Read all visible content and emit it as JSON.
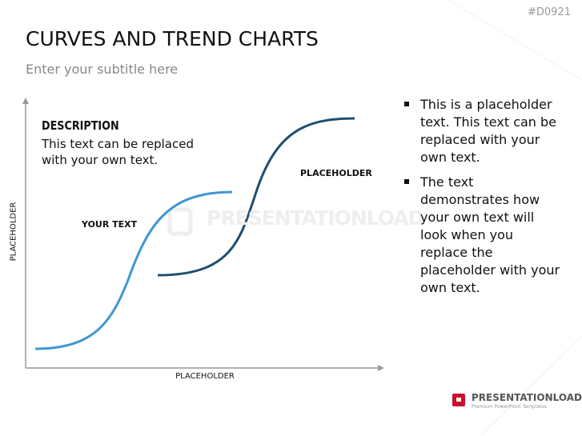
{
  "header": {
    "code": "#D0921",
    "title": "CURVES AND TREND CHARTS",
    "subtitle": "Enter your subtitle here"
  },
  "diagram": {
    "description_title": "DESCRIPTION",
    "description_text": "This text can be replaced with your own text.",
    "y_axis_label": "PLACEHOLDER",
    "x_axis_label": "PLACEHOLDER",
    "curve_1_label": "YOUR TEXT",
    "curve_2_label": "PLACEHOLDER",
    "watermark": "PRESENTATIONLOAD"
  },
  "bullets": [
    "This is a placeholder text. This text can be replaced with your own text.",
    "The text demonstrates how your own text will look when you replace the placeholder with your own text."
  ],
  "logo": {
    "name": "PRESENTATIONLOAD",
    "tagline": "Premium PowerPoint Templates"
  }
}
